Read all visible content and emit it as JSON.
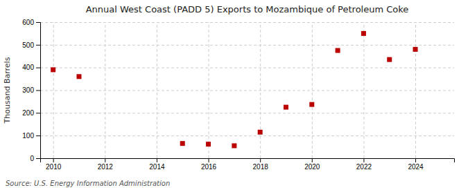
{
  "chart_data": {
    "type": "scatter",
    "title": "Annual West Coast (PADD 5) Exports to Mozambique of Petroleum Coke",
    "ylabel": "Thousand Barrels",
    "source": "Source: U.S. Energy Information Administration",
    "x": [
      2010,
      2011,
      2015,
      2016,
      2017,
      2018,
      2019,
      2020,
      2021,
      2022,
      2023,
      2024
    ],
    "values": [
      390,
      360,
      65,
      62,
      55,
      115,
      225,
      237,
      475,
      550,
      435,
      480
    ],
    "color": "#bb0000",
    "marker": "square",
    "xlim": [
      2009.5,
      2025.5
    ],
    "xticks": [
      2010,
      2012,
      2014,
      2016,
      2018,
      2020,
      2022,
      2024
    ],
    "ylim": [
      0,
      600
    ],
    "yticks": [
      0,
      100,
      200,
      300,
      400,
      500,
      600
    ],
    "grid": true
  }
}
